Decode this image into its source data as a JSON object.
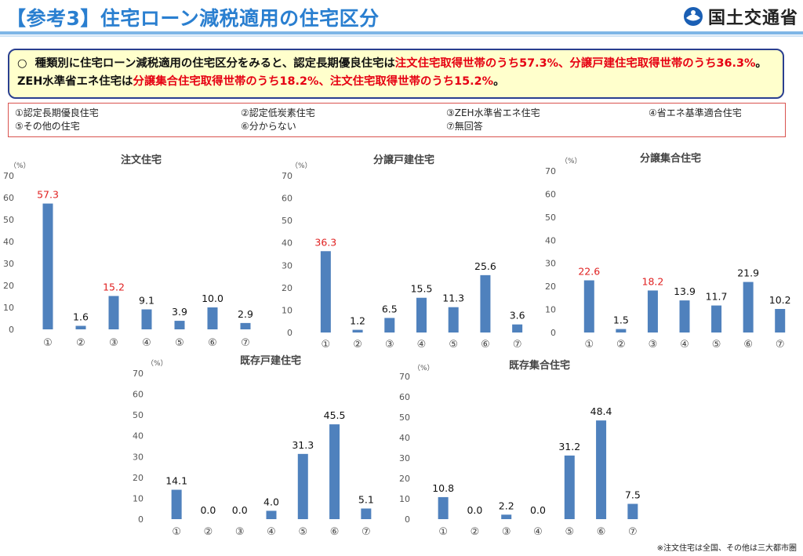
{
  "header": {
    "title": "【参考3】住宅ローン減税適用の住宅区分",
    "logo_text": "国土交通省"
  },
  "summary": {
    "bullet": "○",
    "segments": [
      {
        "text": "種類別に住宅ローン減税適用の住宅区分をみると、認定長期優良住宅は",
        "red": false
      },
      {
        "text": "注文住宅取得世帯のうち57.3%、分譲戸建住宅取得世帯のうち36.3%",
        "red": true
      },
      {
        "text": "。ZEH水準省エネ住宅は",
        "red": false
      },
      {
        "text": "分譲集合住宅取得世帯のうち18.2%、注文住宅取得世帯のうち15.2%",
        "red": true
      },
      {
        "text": "。",
        "red": false
      }
    ]
  },
  "legend": [
    "①認定長期優良住宅",
    "②認定低炭素住宅",
    "③ZEH水準省エネ住宅",
    "④省エネ基準適合住宅",
    "⑤その他の住宅",
    "⑥分からない",
    "⑦無回答"
  ],
  "chart_data": [
    {
      "type": "bar",
      "title": "注文住宅",
      "unit": "（%）",
      "categories": [
        "①",
        "②",
        "③",
        "④",
        "⑤",
        "⑥",
        "⑦"
      ],
      "values": [
        57.3,
        1.6,
        15.2,
        9.1,
        3.9,
        10.0,
        2.9
      ],
      "highlight": [
        0,
        2
      ],
      "ylim": [
        0,
        70
      ],
      "yticks": [
        0,
        10,
        20,
        30,
        40,
        50,
        60,
        70
      ]
    },
    {
      "type": "bar",
      "title": "分譲戸建住宅",
      "unit": "（%）",
      "categories": [
        "①",
        "②",
        "③",
        "④",
        "⑤",
        "⑥",
        "⑦"
      ],
      "values": [
        36.3,
        1.2,
        6.5,
        15.5,
        11.3,
        25.6,
        3.6
      ],
      "highlight": [
        0
      ],
      "ylim": [
        0,
        70
      ],
      "yticks": [
        0,
        10,
        20,
        30,
        40,
        50,
        60,
        70
      ]
    },
    {
      "type": "bar",
      "title": "分譲集合住宅",
      "unit": "（%）",
      "categories": [
        "①",
        "②",
        "③",
        "④",
        "⑤",
        "⑥",
        "⑦"
      ],
      "values": [
        22.6,
        1.5,
        18.2,
        13.9,
        11.7,
        21.9,
        10.2
      ],
      "highlight": [
        0,
        2
      ],
      "ylim": [
        0,
        70
      ],
      "yticks": [
        0,
        10,
        20,
        30,
        40,
        50,
        60,
        70
      ]
    },
    {
      "type": "bar",
      "title": "既存戸建住宅",
      "unit": "（%）",
      "categories": [
        "①",
        "②",
        "③",
        "④",
        "⑤",
        "⑥",
        "⑦"
      ],
      "values": [
        14.1,
        0.0,
        0.0,
        4.0,
        31.3,
        45.5,
        5.1
      ],
      "highlight": [],
      "ylim": [
        0,
        70
      ],
      "yticks": [
        0,
        10,
        20,
        30,
        40,
        50,
        60,
        70
      ]
    },
    {
      "type": "bar",
      "title": "既存集合住宅",
      "unit": "（%）",
      "categories": [
        "①",
        "②",
        "③",
        "④",
        "⑤",
        "⑥",
        "⑦"
      ],
      "values": [
        10.8,
        0.0,
        2.2,
        0.0,
        31.2,
        48.4,
        7.5
      ],
      "highlight": [],
      "ylim": [
        0,
        70
      ],
      "yticks": [
        0,
        10,
        20,
        30,
        40,
        50,
        60,
        70
      ]
    }
  ],
  "footnote": "※注文住宅は全国、その他は三大都市圏",
  "colors": {
    "bar": "#4f81bd",
    "highlight_text": "#e02020",
    "title": "#2a7fd0",
    "summary_bg": "#ffffcc",
    "summary_border": "#2a3f8f"
  }
}
